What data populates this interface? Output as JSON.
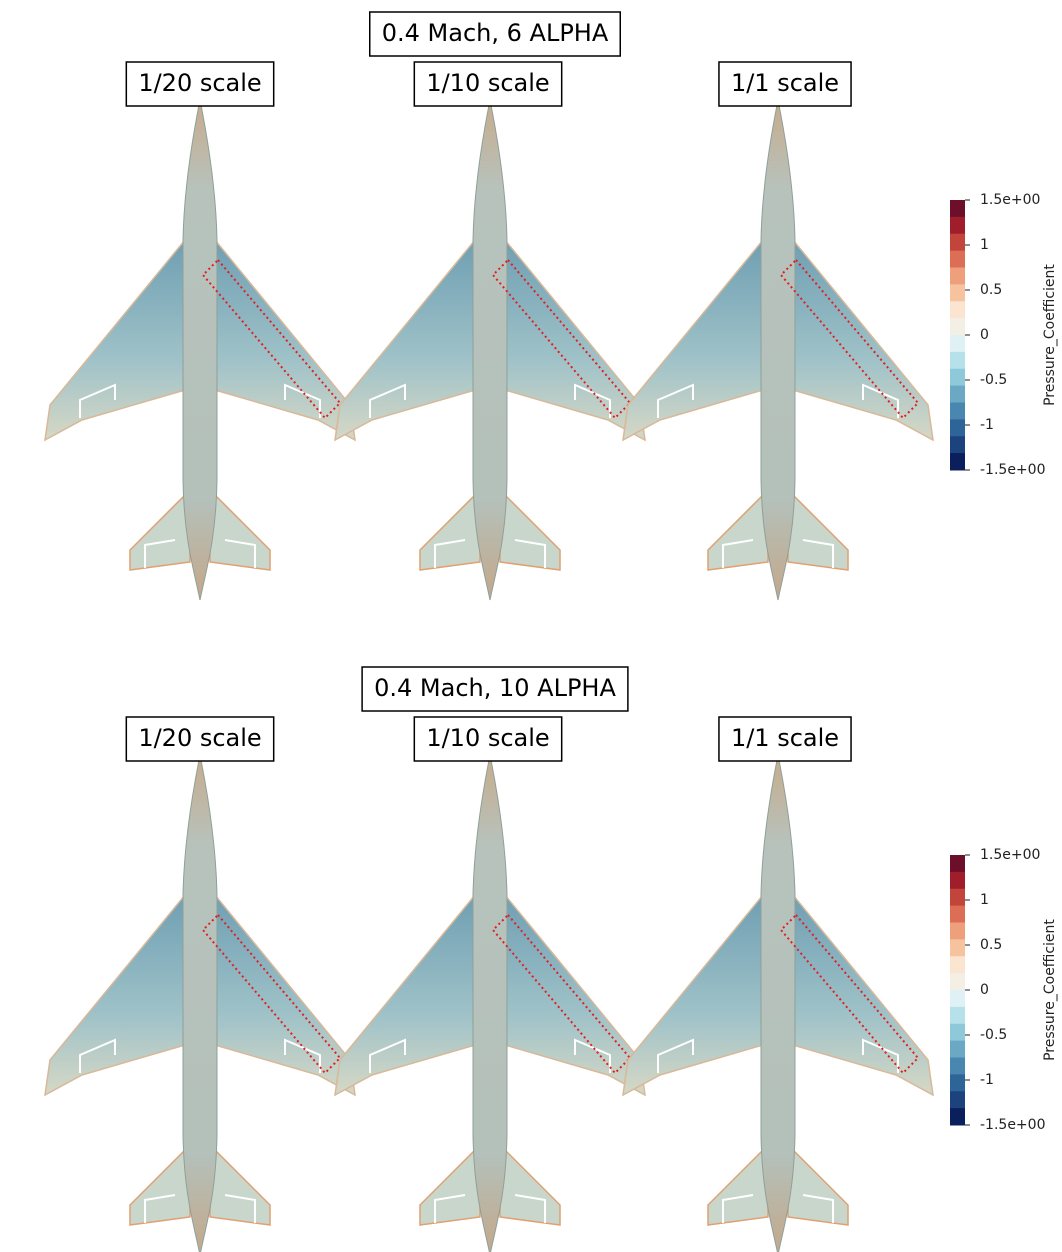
{
  "panels": [
    {
      "title": "0.4 Mach, 6 ALPHA",
      "labels": [
        "1/20 scale",
        "1/10 scale",
        "1/1 scale"
      ],
      "colorbar": {
        "title": "Pressure_Coefficient",
        "range": [
          -1.5,
          1.5
        ],
        "ticks": [
          {
            "value": 1.5,
            "label": "1.5e+00"
          },
          1,
          0.5,
          0,
          -0.5,
          -1,
          {
            "value": -1.5,
            "label": "-1.5e+00"
          }
        ]
      }
    },
    {
      "title": "0.4 Mach, 10 ALPHA",
      "labels": [
        "1/20 scale",
        "1/10 scale",
        "1/1 scale"
      ],
      "colorbar": {
        "title": "Pressure_Coefficient",
        "range": [
          -1.5,
          1.5
        ],
        "ticks": [
          {
            "value": 1.5,
            "label": "1.5e+00"
          },
          1,
          0.5,
          0,
          -0.5,
          -1,
          {
            "value": -1.5,
            "label": "-1.5e+00"
          }
        ]
      }
    }
  ]
}
